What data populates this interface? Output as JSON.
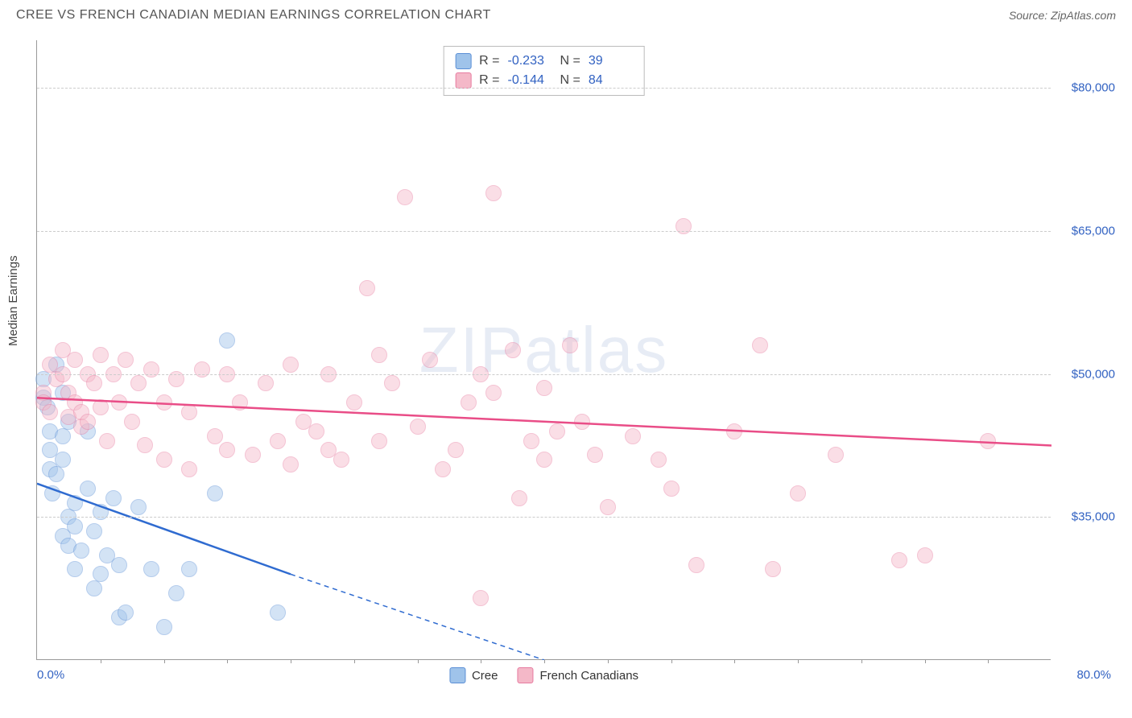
{
  "header": {
    "title": "CREE VS FRENCH CANADIAN MEDIAN EARNINGS CORRELATION CHART",
    "source_prefix": "Source: ",
    "source_name": "ZipAtlas.com"
  },
  "watermark": "ZIPatlas",
  "chart": {
    "type": "scatter",
    "ylabel": "Median Earnings",
    "xlim": [
      0,
      80
    ],
    "ylim": [
      20000,
      85000
    ],
    "xticks": {
      "min_label": "0.0%",
      "max_label": "80.0%"
    },
    "ytick_values": [
      35000,
      50000,
      65000,
      80000
    ],
    "ytick_labels": [
      "$35,000",
      "$50,000",
      "$65,000",
      "$80,000"
    ],
    "grid_dash_color": "#cccccc",
    "axis_color": "#999999",
    "label_color": "#3262c2",
    "background_color": "#ffffff",
    "point_radius": 10,
    "point_opacity": 0.45,
    "series": [
      {
        "name": "Cree",
        "fill_color": "#9fc3ea",
        "stroke_color": "#5b8fd6",
        "trend_color": "#2f6bd0",
        "R": "-0.233",
        "N": "39",
        "trend": {
          "x1": 0,
          "y1": 38500,
          "x2_solid": 20,
          "y2_solid": 29000,
          "x2_dash": 40,
          "y2_dash": 20000
        },
        "points": [
          [
            0.5,
            47500
          ],
          [
            0.5,
            49500
          ],
          [
            0.8,
            46500
          ],
          [
            1,
            44000
          ],
          [
            1,
            42000
          ],
          [
            1,
            40000
          ],
          [
            1.5,
            51000
          ],
          [
            1.5,
            39500
          ],
          [
            1.2,
            37500
          ],
          [
            2,
            48000
          ],
          [
            2,
            43500
          ],
          [
            2,
            41000
          ],
          [
            2.5,
            45000
          ],
          [
            2.5,
            35000
          ],
          [
            2,
            33000
          ],
          [
            2.5,
            32000
          ],
          [
            3,
            36500
          ],
          [
            3,
            34000
          ],
          [
            3.5,
            31500
          ],
          [
            3,
            29500
          ],
          [
            4,
            44000
          ],
          [
            4,
            38000
          ],
          [
            4.5,
            33500
          ],
          [
            4.5,
            27500
          ],
          [
            5,
            35500
          ],
          [
            5,
            29000
          ],
          [
            5.5,
            31000
          ],
          [
            6,
            37000
          ],
          [
            6.5,
            30000
          ],
          [
            6.5,
            24500
          ],
          [
            7,
            25000
          ],
          [
            8,
            36000
          ],
          [
            9,
            29500
          ],
          [
            10,
            23500
          ],
          [
            11,
            27000
          ],
          [
            12,
            29500
          ],
          [
            14,
            37500
          ],
          [
            15,
            53500
          ],
          [
            19,
            25000
          ]
        ]
      },
      {
        "name": "French Canadians",
        "fill_color": "#f4b8c8",
        "stroke_color": "#e77ba0",
        "trend_color": "#e94d87",
        "R": "-0.144",
        "N": "84",
        "trend": {
          "x1": 0,
          "y1": 47500,
          "x2_solid": 80,
          "y2_solid": 42500,
          "x2_dash": 80,
          "y2_dash": 42500
        },
        "points": [
          [
            0.5,
            48000
          ],
          [
            0.5,
            47000
          ],
          [
            1,
            46000
          ],
          [
            1,
            51000
          ],
          [
            1.5,
            49500
          ],
          [
            2,
            52500
          ],
          [
            2,
            50000
          ],
          [
            2.5,
            45500
          ],
          [
            2.5,
            48000
          ],
          [
            3,
            51500
          ],
          [
            3,
            47000
          ],
          [
            3.5,
            44500
          ],
          [
            3.5,
            46000
          ],
          [
            4,
            50000
          ],
          [
            4,
            45000
          ],
          [
            4.5,
            49000
          ],
          [
            5,
            46500
          ],
          [
            5,
            52000
          ],
          [
            5.5,
            43000
          ],
          [
            6,
            50000
          ],
          [
            6.5,
            47000
          ],
          [
            7,
            51500
          ],
          [
            7.5,
            45000
          ],
          [
            8,
            49000
          ],
          [
            8.5,
            42500
          ],
          [
            9,
            50500
          ],
          [
            10,
            47000
          ],
          [
            10,
            41000
          ],
          [
            11,
            49500
          ],
          [
            12,
            46000
          ],
          [
            12,
            40000
          ],
          [
            13,
            50500
          ],
          [
            14,
            43500
          ],
          [
            15,
            42000
          ],
          [
            15,
            50000
          ],
          [
            16,
            47000
          ],
          [
            17,
            41500
          ],
          [
            18,
            49000
          ],
          [
            19,
            43000
          ],
          [
            20,
            51000
          ],
          [
            20,
            40500
          ],
          [
            21,
            45000
          ],
          [
            22,
            44000
          ],
          [
            23,
            42000
          ],
          [
            23,
            50000
          ],
          [
            24,
            41000
          ],
          [
            25,
            47000
          ],
          [
            26,
            59000
          ],
          [
            27,
            43000
          ],
          [
            27,
            52000
          ],
          [
            28,
            49000
          ],
          [
            29,
            68500
          ],
          [
            30,
            44500
          ],
          [
            31,
            51500
          ],
          [
            32,
            40000
          ],
          [
            33,
            42000
          ],
          [
            34,
            47000
          ],
          [
            35,
            26500
          ],
          [
            35,
            50000
          ],
          [
            36,
            69000
          ],
          [
            36,
            48000
          ],
          [
            37.5,
            52500
          ],
          [
            38,
            37000
          ],
          [
            39,
            43000
          ],
          [
            40,
            41000
          ],
          [
            40,
            48500
          ],
          [
            41,
            44000
          ],
          [
            42,
            53000
          ],
          [
            43,
            45000
          ],
          [
            44,
            41500
          ],
          [
            45,
            36000
          ],
          [
            47,
            43500
          ],
          [
            49,
            41000
          ],
          [
            50,
            38000
          ],
          [
            51,
            65500
          ],
          [
            52,
            30000
          ],
          [
            55,
            44000
          ],
          [
            57,
            53000
          ],
          [
            58,
            29500
          ],
          [
            60,
            37500
          ],
          [
            63,
            41500
          ],
          [
            68,
            30500
          ],
          [
            70,
            31000
          ],
          [
            75,
            43000
          ]
        ]
      }
    ]
  }
}
